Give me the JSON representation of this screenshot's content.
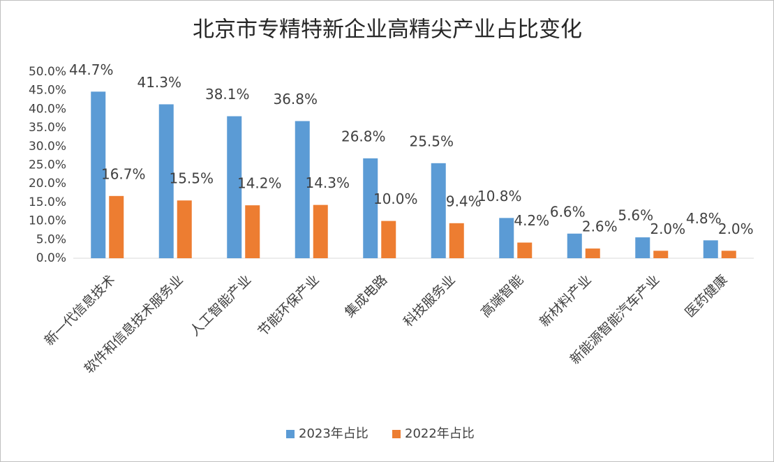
{
  "chart_data": {
    "type": "bar",
    "title": "北京市专精特新企业高精尖产业占比变化",
    "categories": [
      "新一代信息技术",
      "软件和信息技术服务业",
      "人工智能产业",
      "节能环保产业",
      "集成电路",
      "科技服务业",
      "高端智能",
      "新材料产业",
      "新能源智能汽车产业",
      "医药健康"
    ],
    "series": [
      {
        "name": "2023年占比",
        "color": "#5b9bd5",
        "values": [
          44.7,
          41.3,
          38.1,
          36.8,
          26.8,
          25.5,
          10.8,
          6.6,
          5.6,
          4.8
        ],
        "value_labels": [
          "44.7%",
          "41.3%",
          "38.1%",
          "36.8%",
          "26.8%",
          "25.5%",
          "10.8%",
          "6.6%",
          "5.6%",
          "4.8%"
        ]
      },
      {
        "name": "2022年占比",
        "color": "#ed7d31",
        "values": [
          16.7,
          15.5,
          14.2,
          14.3,
          10.0,
          9.4,
          4.2,
          2.6,
          2.0,
          2.0
        ],
        "value_labels": [
          "16.7%",
          "15.5%",
          "14.2%",
          "14.3%",
          "10.0%",
          "9.4%",
          "4.2%",
          "2.6%",
          "2.0%",
          "2.0%"
        ]
      }
    ],
    "ylim": [
      0,
      50
    ],
    "yticks": [
      {
        "value": 0,
        "label": "0.0%"
      },
      {
        "value": 5,
        "label": "5.0%"
      },
      {
        "value": 10,
        "label": "10.0%"
      },
      {
        "value": 15,
        "label": "15.0%"
      },
      {
        "value": 20,
        "label": "20.0%"
      },
      {
        "value": 25,
        "label": "25.0%"
      },
      {
        "value": 30,
        "label": "30.0%"
      },
      {
        "value": 35,
        "label": "35.0%"
      },
      {
        "value": 40,
        "label": "40.0%"
      },
      {
        "value": 45,
        "label": "45.0%"
      },
      {
        "value": 50,
        "label": "50.0%"
      }
    ],
    "grid": false,
    "legend": "bottom"
  }
}
